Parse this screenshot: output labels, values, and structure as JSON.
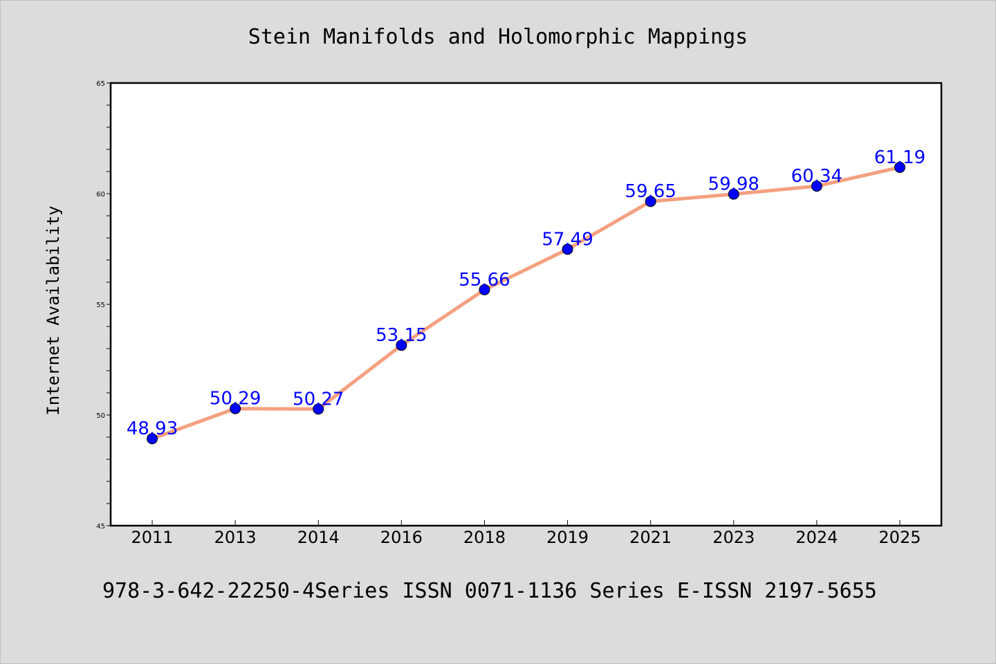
{
  "footer": "978-3-642-22250-4Series ISSN 0071-1136 Series E-ISSN 2197-5655",
  "chart_data": {
    "type": "line",
    "title": "Stein Manifolds and Holomorphic Mappings",
    "xlabel": "",
    "ylabel": "Internet Availability",
    "categories": [
      "2011",
      "2013",
      "2014",
      "2016",
      "2018",
      "2019",
      "2021",
      "2023",
      "2024",
      "2025"
    ],
    "series": [
      {
        "values": [
          48.93,
          50.29,
          50.27,
          53.15,
          55.66,
          57.49,
          59.65,
          59.98,
          60.34,
          61.19
        ],
        "line_color": "#f4a07f",
        "marker_color": "#0000ff"
      }
    ],
    "data_labels": [
      "48.93",
      "50.29",
      "50.27",
      "53.15",
      "55.66",
      "57.49",
      "59.65",
      "59.98",
      "60.34",
      "61.19"
    ],
    "ylim": [
      45,
      65
    ],
    "yticks": [
      45,
      50,
      55,
      60,
      65
    ],
    "ytick_labels": [
      "45",
      "50",
      "55",
      "60",
      "65"
    ],
    "grid": false,
    "legend": "none",
    "colors": {
      "background": "#dcdcdc",
      "plot_background": "#ffffff",
      "label": "#0000ff"
    }
  }
}
